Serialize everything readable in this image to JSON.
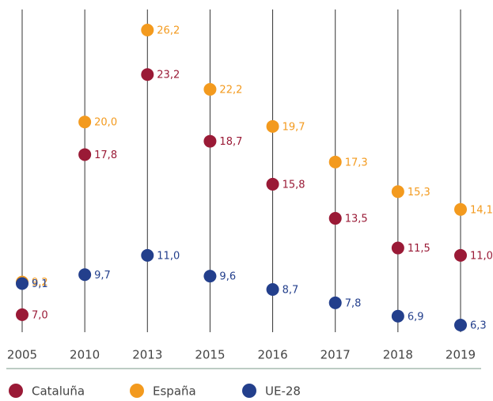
{
  "chart_data": {
    "type": "dot",
    "categories": [
      "2005",
      "2010",
      "2013",
      "2015",
      "2016",
      "2017",
      "2018",
      "2019"
    ],
    "series": [
      {
        "name": "Cataluña",
        "color": "#9a1a36",
        "values": [
          7.0,
          17.8,
          23.2,
          18.7,
          15.8,
          13.5,
          11.5,
          11.0
        ],
        "value_labels": [
          "7,0",
          "17,8",
          "23,2",
          "18,7",
          "15,8",
          "13,5",
          "11,5",
          "11,0"
        ]
      },
      {
        "name": "España",
        "color": "#f39a1e",
        "values": [
          9.2,
          20.0,
          26.2,
          22.2,
          19.7,
          17.3,
          15.3,
          14.1
        ],
        "value_labels": [
          "9,2",
          "20,0",
          "26,2",
          "22,2",
          "19,7",
          "17,3",
          "15,3",
          "14,1"
        ]
      },
      {
        "name": "UE-28",
        "color": "#233f8c",
        "values": [
          9.1,
          9.7,
          11.0,
          9.6,
          8.7,
          7.8,
          6.9,
          6.3
        ],
        "value_labels": [
          "9,1",
          "9,7",
          "11,0",
          "9,6",
          "8,7",
          "7,8",
          "6,9",
          "6,3"
        ]
      }
    ]
  }
}
